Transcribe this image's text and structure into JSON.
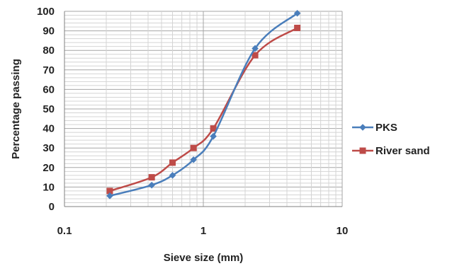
{
  "chart_data": {
    "type": "line",
    "xscale": "log",
    "xlim": [
      0.1,
      10
    ],
    "ylim": [
      0,
      100
    ],
    "xticks": [
      0.1,
      1,
      10
    ],
    "xtick_labels": [
      "0.1",
      "1",
      "10"
    ],
    "yticks": [
      0,
      10,
      20,
      30,
      40,
      50,
      60,
      70,
      80,
      90,
      100
    ],
    "ytick_labels": [
      "0",
      "10",
      "20",
      "30",
      "40",
      "50",
      "60",
      "70",
      "80",
      "90",
      "100"
    ],
    "xlabel": "Sieve size (mm)",
    "ylabel": "Percentage passing",
    "grid": true,
    "legend_position": "right",
    "series": [
      {
        "name": "PKS",
        "color": "#4a7ebb",
        "marker": "diamond",
        "x": [
          0.212,
          0.425,
          0.6,
          0.85,
          1.18,
          2.36,
          4.75
        ],
        "y": [
          5.5,
          11,
          16,
          24,
          36,
          81,
          99
        ]
      },
      {
        "name": "River sand",
        "color": "#be4b48",
        "marker": "square",
        "x": [
          0.212,
          0.425,
          0.6,
          0.85,
          1.18,
          2.36,
          4.75
        ],
        "y": [
          8,
          15,
          22.5,
          30,
          40,
          77.5,
          91.5
        ]
      }
    ]
  }
}
